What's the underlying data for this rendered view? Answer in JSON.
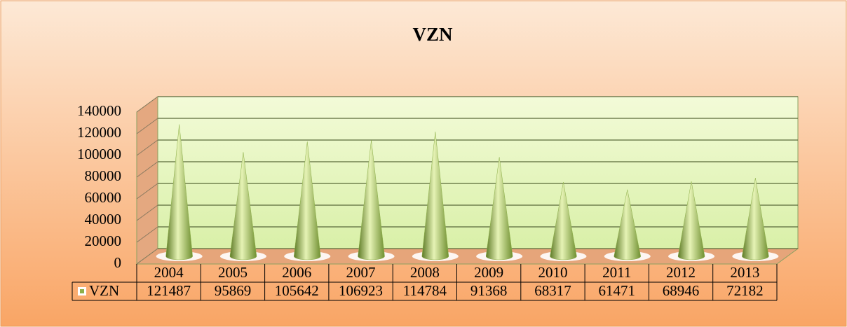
{
  "chart_data": {
    "type": "cone",
    "title": "VZN",
    "categories": [
      "2004",
      "2005",
      "2006",
      "2007",
      "2008",
      "2009",
      "2010",
      "2011",
      "2012",
      "2013"
    ],
    "series": [
      {
        "name": "VZN",
        "color": "#8db04a",
        "values": [
          121487,
          95869,
          105642,
          106923,
          114784,
          91368,
          68317,
          61471,
          68946,
          72182
        ]
      }
    ],
    "ylim": [
      0,
      140000
    ],
    "yticks": [
      0,
      20000,
      40000,
      60000,
      80000,
      100000,
      120000,
      140000
    ],
    "grid": true,
    "data_table": true
  }
}
